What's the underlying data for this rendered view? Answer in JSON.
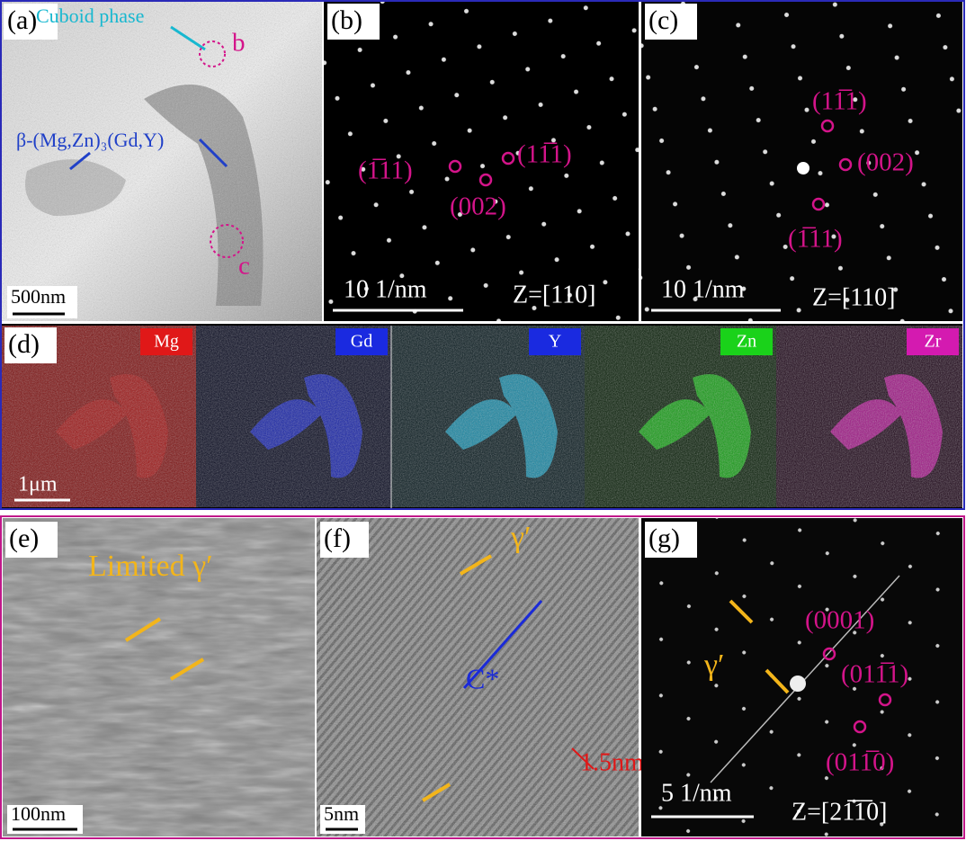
{
  "panels": {
    "a": {
      "label": "(a)",
      "cuboid_phase": "Cuboid phase",
      "marker_b": "b",
      "beta_phase": "β-(Mg,Zn)₃(Gd,Y)",
      "marker_c": "c",
      "scale_bar": "500nm"
    },
    "b": {
      "label": "(b)",
      "spot_1": "(1̅11)",
      "spot_2": "(11̅1)",
      "spot_3": "(002)",
      "scale_bar": "10 1/nm",
      "zone_axis": "Z=[110]"
    },
    "c": {
      "label": "(c)",
      "spot_1": "(11̅1)",
      "spot_2": "(002)",
      "spot_3": "(1̅11)",
      "scale_bar": "10 1/nm",
      "zone_axis": "Z=[110]"
    },
    "d": {
      "label": "(d)",
      "elements": [
        "Mg",
        "Gd",
        "Y",
        "Zn",
        "Zr"
      ],
      "scale_bar": "1μm"
    },
    "e": {
      "label": "(e)",
      "annotation": "Limited γ′",
      "scale_bar": "100nm"
    },
    "f": {
      "label": "(f)",
      "phase": "γ′",
      "direction": "C*",
      "spacing": "1.5nm",
      "scale_bar": "5nm"
    },
    "g": {
      "label": "(g)",
      "spot_1": "(0001)",
      "spot_2": "(011̅1)",
      "spot_3": "(011̅0)",
      "phase": "γ′",
      "scale_bar": "5 1/nm",
      "zone_axis": "Z=[21̅1̅0]"
    }
  }
}
